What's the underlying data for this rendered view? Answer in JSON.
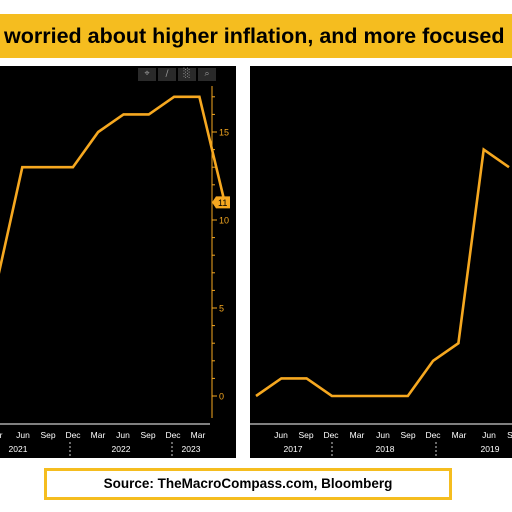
{
  "banner": {
    "text": "worried about higher inflation, and more focused"
  },
  "toolbar": {
    "icons": [
      "crosshair-icon",
      "pencil-icon",
      "chart-icon",
      "zoom-icon"
    ],
    "glyphs": [
      "⌖",
      "∕",
      "░",
      "⌕"
    ]
  },
  "colors": {
    "line": "#f6a820",
    "background": "#000000",
    "banner": "#f5bd1f"
  },
  "source": {
    "text": "Source: TheMacroCompass.com, Bloomberg"
  },
  "chart_data": [
    {
      "type": "line",
      "x": [
        "2020-12",
        "2021-03",
        "2021-06",
        "2021-09",
        "2021-12",
        "2022-03",
        "2022-06",
        "2022-09",
        "2022-12",
        "2023-03"
      ],
      "series": [
        {
          "values": [
            6.5,
            13,
            13,
            13,
            15,
            16,
            16,
            17,
            17,
            11
          ]
        }
      ],
      "yticks": [
        0,
        5,
        10,
        15
      ],
      "ylim": [
        0,
        17.5
      ],
      "last_value_label": "11",
      "xtick_labels": [
        "r",
        "Jun",
        "Sep",
        "Dec",
        "Mar",
        "Jun",
        "Sep",
        "Dec",
        "Mar"
      ],
      "year_labels": [
        "2021",
        "2022",
        "2023"
      ],
      "grid": false
    },
    {
      "type": "line",
      "x": [
        "2017-03",
        "2017-06",
        "2017-09",
        "2017-12",
        "2018-03",
        "2018-06",
        "2018-09",
        "2018-12",
        "2019-03",
        "2019-06",
        "2019-09"
      ],
      "series": [
        {
          "values": [
            0,
            1,
            1,
            0,
            0,
            0,
            0,
            2,
            3,
            14,
            13
          ]
        }
      ],
      "ylim": [
        0,
        17.5
      ],
      "xtick_labels": [
        "Jun",
        "Sep",
        "Dec",
        "Mar",
        "Jun",
        "Sep",
        "Dec",
        "Mar",
        "Jun",
        "S"
      ],
      "year_labels": [
        "2017",
        "2018",
        "2019"
      ],
      "grid": false
    }
  ]
}
